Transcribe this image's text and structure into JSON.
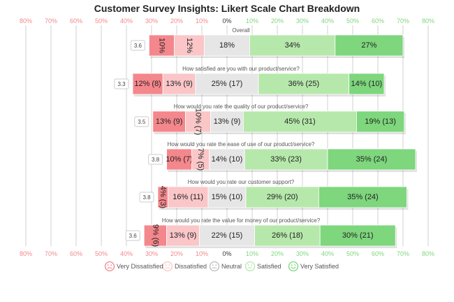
{
  "chart_data": {
    "type": "bar",
    "subtype": "diverging-stacked-likert",
    "title": "Customer Survey Insights: Likert Scale Chart Breakdown",
    "x_ticks_negative": [
      "80%",
      "70%",
      "60%",
      "50%",
      "40%",
      "30%",
      "20%",
      "10%"
    ],
    "x_tick_zero": "0%",
    "x_ticks_positive": [
      "10%",
      "20%",
      "30%",
      "40%",
      "50%",
      "60%",
      "70%",
      "80%"
    ],
    "xlim": [
      -80,
      80
    ],
    "categories": [
      "Overall",
      "How satisfied are you with our product/service?",
      "How would you rate the quality of our product/service?",
      "How would you rate the ease of use of our product/service?",
      "How would you rate our customer support?",
      "How would you rate the value for money of our product/service?"
    ],
    "means": [
      "3.6",
      "3.3",
      "3.5",
      "3.8",
      "3.8",
      "3.6"
    ],
    "series": [
      {
        "name": "Very Dissatisfied",
        "color": "#f4878c",
        "values": [
          10,
          12,
          13,
          10,
          4,
          9
        ],
        "labels": [
          "10%",
          "12% (8)",
          "13% (9)",
          "10% (7)",
          "4% (3)",
          "9% (6)"
        ],
        "rotated": [
          true,
          false,
          false,
          false,
          true,
          true
        ]
      },
      {
        "name": "Dissatisfied",
        "color": "#fac6c8",
        "values": [
          12,
          13,
          10,
          7,
          16,
          13
        ],
        "labels": [
          "12%",
          "13% (9)",
          "10% (7)",
          "7% (5)",
          "16% (11)",
          "13% (9)"
        ],
        "rotated": [
          true,
          false,
          true,
          true,
          false,
          false
        ]
      },
      {
        "name": "Neutral",
        "color": "#e6e6e6",
        "values": [
          18,
          25,
          13,
          14,
          15,
          22
        ],
        "labels": [
          "18%",
          "25% (17)",
          "13% (9)",
          "14% (10)",
          "15% (10)",
          "22% (15)"
        ],
        "rotated": [
          false,
          false,
          false,
          false,
          false,
          false
        ]
      },
      {
        "name": "Satisfied",
        "color": "#b6e8ab",
        "values": [
          34,
          36,
          45,
          33,
          29,
          26
        ],
        "labels": [
          "34%",
          "36% (25)",
          "45% (31)",
          "33% (23)",
          "29% (20)",
          "26% (18)"
        ],
        "rotated": [
          false,
          false,
          false,
          false,
          false,
          false
        ]
      },
      {
        "name": "Very Satisfied",
        "color": "#7ed67d",
        "values": [
          27,
          14,
          19,
          35,
          35,
          30
        ],
        "labels": [
          "27%",
          "14% (10)",
          "19% (13)",
          "35% (24)",
          "35% (24)",
          "30% (21)"
        ],
        "rotated": [
          false,
          false,
          false,
          false,
          false,
          false
        ]
      }
    ],
    "grid": true,
    "legend_position": "bottom",
    "colors": {
      "negative_tick": "#f4878c",
      "positive_tick": "#7ed67d",
      "zero_tick": "#333333",
      "grid": "#d0d0d0"
    }
  }
}
